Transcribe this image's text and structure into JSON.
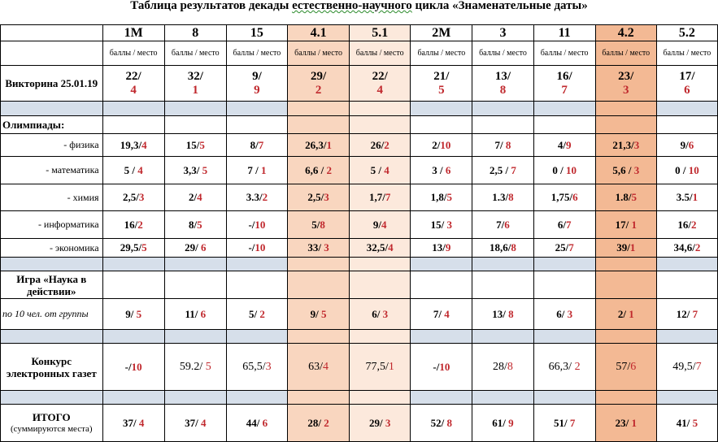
{
  "title_part1": "Таблица результатов декады ",
  "title_part2": "естественно-научного",
  "title_part3": " цикла «Знаменательные даты»",
  "unit_label": "баллы / место",
  "groups": [
    "1М",
    "8",
    "15",
    "4.1",
    "5.1",
    "2М",
    "3",
    "11",
    "4.2",
    "5.2"
  ],
  "highlight_colors": {
    "4.1": "#f9d6bf",
    "5.1": "#fce9dc",
    "4.2": "#f3b994"
  },
  "quiz": {
    "label": "Викторина 25.01.19",
    "values": [
      [
        "22/",
        "4"
      ],
      [
        "32/",
        "1"
      ],
      [
        "9/",
        "9"
      ],
      [
        "29/",
        "2"
      ],
      [
        "22/",
        "4"
      ],
      [
        "21/",
        "5"
      ],
      [
        "13/",
        "8"
      ],
      [
        "16/",
        "7"
      ],
      [
        "23/",
        "3"
      ],
      [
        "17/",
        "6"
      ]
    ]
  },
  "olymp_header": "Олимпиады:",
  "olympiads": [
    {
      "label": "- физика",
      "values": [
        [
          "19,3/",
          "4"
        ],
        [
          "15/",
          "5"
        ],
        [
          "8/",
          "7"
        ],
        [
          "26,3/",
          "1"
        ],
        [
          "26/",
          "2"
        ],
        [
          "2/",
          "10"
        ],
        [
          "7/ ",
          "8"
        ],
        [
          "4/",
          "9"
        ],
        [
          "21,3/",
          "3"
        ],
        [
          "9/",
          "6"
        ]
      ]
    },
    {
      "label": "- математика",
      "values": [
        [
          "5 / ",
          "4"
        ],
        [
          "3,3/ ",
          "5"
        ],
        [
          "7 / ",
          "1"
        ],
        [
          "6,6 / ",
          "2"
        ],
        [
          "5 / ",
          "4"
        ],
        [
          "3 / ",
          "6"
        ],
        [
          "2,5 / ",
          "7"
        ],
        [
          "0 / ",
          "10"
        ],
        [
          "5,6 / ",
          "3"
        ],
        [
          "0 / ",
          "10"
        ]
      ]
    },
    {
      "label": "- химия",
      "values": [
        [
          "2,5/",
          "3"
        ],
        [
          "2/",
          "4"
        ],
        [
          "3.3/",
          "2"
        ],
        [
          "2,5/",
          "3"
        ],
        [
          "1,7/",
          "7"
        ],
        [
          "1,8/",
          "5"
        ],
        [
          "1.3/",
          "8"
        ],
        [
          "1,75/",
          "6"
        ],
        [
          "1.8/",
          "5"
        ],
        [
          "3.5/",
          "1"
        ]
      ]
    },
    {
      "label": "- информатика",
      "values": [
        [
          "16/",
          "2"
        ],
        [
          "8/",
          "5"
        ],
        [
          "-/",
          "10"
        ],
        [
          "5/",
          "8"
        ],
        [
          "9/",
          "4"
        ],
        [
          "15/ ",
          "3"
        ],
        [
          "7/",
          "6"
        ],
        [
          "6/",
          "7"
        ],
        [
          "17/ ",
          "1"
        ],
        [
          "16/",
          "2"
        ]
      ]
    },
    {
      "label": "- экономика",
      "values": [
        [
          "29,5/",
          "5"
        ],
        [
          "29/ ",
          "6"
        ],
        [
          "-/",
          "10"
        ],
        [
          "33/ ",
          "3"
        ],
        [
          "32,5/",
          "4"
        ],
        [
          "13/",
          "9"
        ],
        [
          "18,6/",
          "8"
        ],
        [
          "25/",
          "7"
        ],
        [
          "39/",
          "1"
        ],
        [
          "34,6/",
          "2"
        ]
      ]
    }
  ],
  "game": {
    "label": "Игра «Наука в действии»",
    "note": "по 10 чел. от группы",
    "values": [
      [
        "9/ ",
        "5"
      ],
      [
        "11/ ",
        "6"
      ],
      [
        "5/ ",
        "2"
      ],
      [
        "9/ ",
        "5"
      ],
      [
        "6/ ",
        "3"
      ],
      [
        "7/ ",
        "4"
      ],
      [
        "13/ ",
        "8"
      ],
      [
        "6/ ",
        "3"
      ],
      [
        "2/ ",
        "1"
      ],
      [
        "12/ ",
        "7"
      ]
    ]
  },
  "newspaper": {
    "label": "Конкурс электронных газет",
    "values": [
      [
        "-/",
        "10"
      ],
      [
        "59.2/ ",
        "5"
      ],
      [
        "65,5/",
        "3"
      ],
      [
        "63/",
        "4"
      ],
      [
        "77,5/",
        "1"
      ],
      [
        "-/",
        "10"
      ],
      [
        "28/",
        "8"
      ],
      [
        "66,3/ ",
        "2"
      ],
      [
        "57/",
        "6"
      ],
      [
        "49,5/",
        "7"
      ]
    ]
  },
  "total": {
    "label": "ИТОГО",
    "note": "(суммируются места)",
    "values": [
      [
        "37/ ",
        "4"
      ],
      [
        "37/ ",
        "4"
      ],
      [
        "44/ ",
        "6"
      ],
      [
        "28/ ",
        "2"
      ],
      [
        "29/ ",
        "3"
      ],
      [
        "52/ ",
        "8"
      ],
      [
        "61/ ",
        "9"
      ],
      [
        "51/ ",
        "7"
      ],
      [
        "23/ ",
        "1"
      ],
      [
        "41/ ",
        "5"
      ]
    ]
  }
}
